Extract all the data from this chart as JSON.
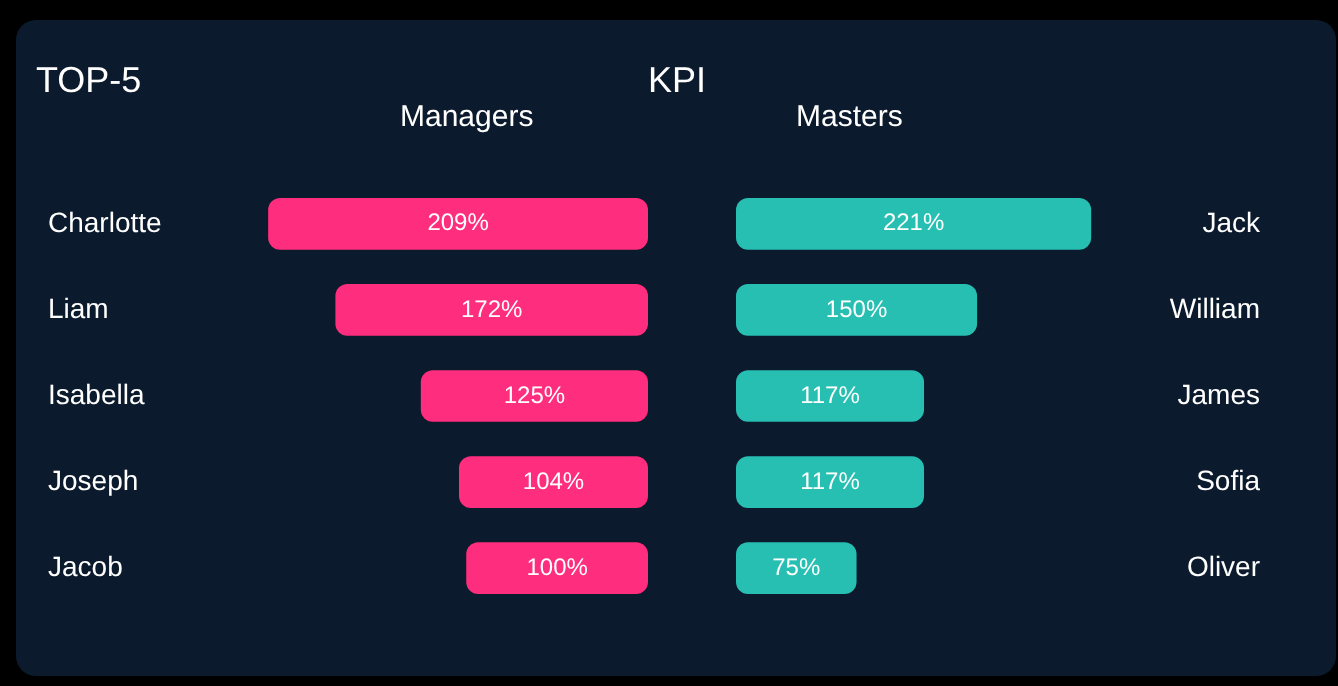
{
  "chart_data": [
    {
      "type": "bar",
      "orientation": "horizontal",
      "title": "Managers",
      "annotations": [
        "TOP-5",
        "KPI"
      ],
      "categories": [
        "Charlotte",
        "Liam",
        "Isabella",
        "Joseph",
        "Jacob"
      ],
      "values": [
        209,
        172,
        125,
        104,
        100
      ],
      "value_labels": [
        "209%",
        "172%",
        "125%",
        "104%",
        "100%"
      ],
      "color": "#ff2d7e",
      "tick_labels": "y"
    },
    {
      "type": "bar",
      "orientation": "horizontal",
      "title": "Masters",
      "categories": [
        "Jack",
        "William",
        "James",
        "Sofia",
        "Oliver"
      ],
      "values": [
        221,
        150,
        117,
        117,
        75
      ],
      "value_labels": [
        "221%",
        "150%",
        "117%",
        "117%",
        "75%"
      ],
      "color": "#26bfb2",
      "tick_labels": "y"
    }
  ]
}
